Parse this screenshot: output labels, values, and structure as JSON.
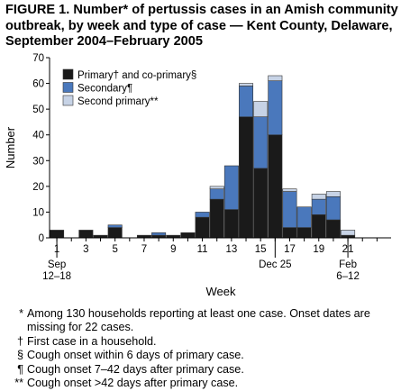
{
  "title": "FIGURE 1. Number* of pertussis cases in an Amish community outbreak, by week and type of case — Kent County, Delaware, September 2004–February 2005",
  "chart_data": {
    "type": "bar",
    "stacked": true,
    "xlabel": "Week",
    "ylabel": "Number",
    "ylim": [
      0,
      70
    ],
    "yticks": [
      0,
      10,
      20,
      30,
      40,
      50,
      60,
      70
    ],
    "week_numbers": [
      1,
      2,
      3,
      4,
      5,
      6,
      7,
      8,
      9,
      10,
      11,
      12,
      13,
      14,
      15,
      16,
      17,
      18,
      19,
      20,
      21,
      22,
      23
    ],
    "xtick_labels": [
      {
        "week": 1,
        "label": "1"
      },
      {
        "week": 3,
        "label": "3"
      },
      {
        "week": 5,
        "label": "5"
      },
      {
        "week": 7,
        "label": "7"
      },
      {
        "week": 9,
        "label": "9"
      },
      {
        "week": 11,
        "label": "11"
      },
      {
        "week": 13,
        "label": "13"
      },
      {
        "week": 15,
        "label": "15"
      },
      {
        "week": 17,
        "label": "17"
      },
      {
        "week": 19,
        "label": "19"
      },
      {
        "week": 21,
        "label": "21"
      }
    ],
    "date_annotations": [
      {
        "week": 1,
        "lines": [
          "Sep",
          "12–18"
        ]
      },
      {
        "week": 16,
        "lines": [
          "Dec 25"
        ]
      },
      {
        "week": 21,
        "lines": [
          "Feb",
          "6–12"
        ]
      }
    ],
    "series": [
      {
        "name": "Primary† and co-primary§",
        "color": "#1a1a1a",
        "values": [
          3,
          0,
          3,
          1,
          4,
          0,
          1,
          1,
          1,
          2,
          8,
          15,
          11,
          47,
          27,
          40,
          4,
          4,
          9,
          7,
          1,
          0,
          0
        ]
      },
      {
        "name": "Secondary¶",
        "color": "#4a78bc",
        "values": [
          0,
          0,
          0,
          0,
          1,
          0,
          0,
          1,
          0,
          0,
          2,
          4,
          17,
          12,
          20,
          21,
          14,
          8,
          6,
          9,
          0,
          0,
          0
        ]
      },
      {
        "name": "Second primary**",
        "color": "#c7d3e6",
        "values": [
          0,
          0,
          0,
          0,
          0,
          0,
          0,
          0,
          0,
          0,
          0,
          1,
          0,
          1,
          6,
          2,
          1,
          0,
          2,
          2,
          2,
          0,
          0
        ]
      }
    ],
    "legend_position": "top-left",
    "grid": false
  },
  "footnotes": [
    {
      "marker": "*",
      "text": "Among 130 households reporting at least one case. Onset dates are missing for 22 cases."
    },
    {
      "marker": "†",
      "text": "First case in a household."
    },
    {
      "marker": "§",
      "text": "Cough onset within 6 days of primary case."
    },
    {
      "marker": "¶",
      "text": "Cough onset 7–42 days after primary case."
    },
    {
      "marker": "**",
      "text": "Cough onset >42 days after primary case."
    }
  ]
}
